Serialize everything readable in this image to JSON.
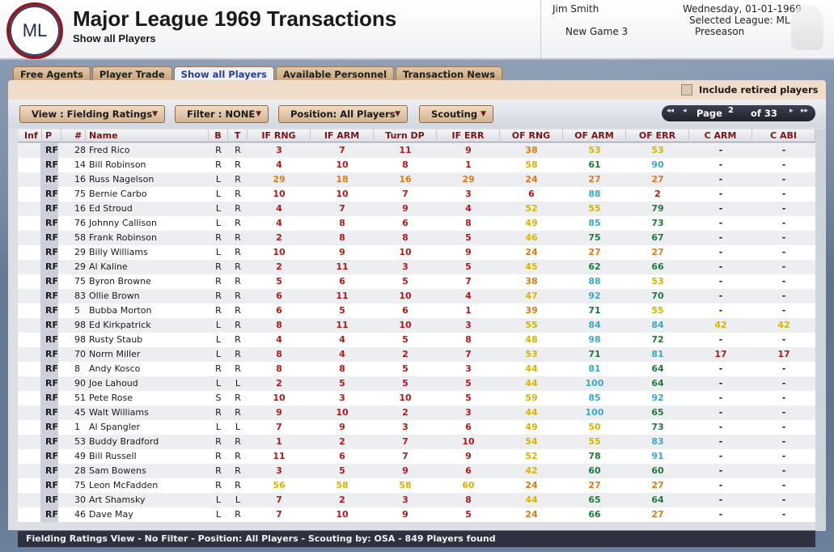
{
  "header": {
    "logo_text": "ML",
    "title": "Major League 1969 Transactions",
    "subtitle": "Show all Players",
    "user_name": "Jim Smith",
    "game_name": "New Game 3",
    "date": "Wednesday, 01-01-1969",
    "league": "Selected League: ML",
    "phase": "Preseason"
  },
  "tabs": [
    "Free Agents",
    "Player Trade",
    "Show all Players",
    "Available Personnel",
    "Transaction News"
  ],
  "active_tab": 2,
  "retired_label": "Include retired players",
  "toolbar": {
    "view": "View : Fielding Ratings",
    "filter": "Filter : NONE",
    "position": "Position: All Players",
    "scouting": "Scouting"
  },
  "pager": {
    "label": "Page",
    "current": "2",
    "of": "of 33"
  },
  "columns": [
    "Inf",
    "P",
    "#",
    "Name",
    "B",
    "T",
    "IF RNG",
    "IF ARM",
    "Turn DP",
    "IF ERR",
    "OF RNG",
    "OF ARM",
    "OF ERR",
    "C ARM",
    "C ABI"
  ],
  "colors": {
    "red": "#b01a1a",
    "orange": "#e07a12",
    "yellow": "#d6b400",
    "green": "#1f7a3a",
    "cyan": "#3aa8c8"
  },
  "players": [
    {
      "pos": "RF",
      "num": "28",
      "name": "Fred Rico",
      "b": "R",
      "t": "R",
      "r": [
        "3",
        "7",
        "11",
        "9",
        "38",
        "53",
        "53",
        "-",
        "-"
      ]
    },
    {
      "pos": "RF",
      "num": "14",
      "name": "Bill Robinson",
      "b": "R",
      "t": "R",
      "r": [
        "4",
        "10",
        "8",
        "1",
        "58",
        "61",
        "90",
        "-",
        "-"
      ]
    },
    {
      "pos": "RF",
      "num": "16",
      "name": "Russ Nagelson",
      "b": "L",
      "t": "R",
      "r": [
        "29",
        "18",
        "16",
        "29",
        "24",
        "27",
        "27",
        "-",
        "-"
      ]
    },
    {
      "pos": "RF",
      "num": "75",
      "name": "Bernie Carbo",
      "b": "L",
      "t": "R",
      "r": [
        "10",
        "10",
        "7",
        "3",
        "6",
        "88",
        "2",
        "-",
        "-"
      ]
    },
    {
      "pos": "RF",
      "num": "16",
      "name": "Ed Stroud",
      "b": "L",
      "t": "R",
      "r": [
        "4",
        "7",
        "9",
        "4",
        "52",
        "55",
        "79",
        "-",
        "-"
      ]
    },
    {
      "pos": "RF",
      "num": "76",
      "name": "Johnny Callison",
      "b": "L",
      "t": "R",
      "r": [
        "4",
        "8",
        "6",
        "8",
        "49",
        "85",
        "73",
        "-",
        "-"
      ]
    },
    {
      "pos": "RF",
      "num": "58",
      "name": "Frank Robinson",
      "b": "R",
      "t": "R",
      "r": [
        "2",
        "8",
        "8",
        "5",
        "46",
        "75",
        "67",
        "-",
        "-"
      ]
    },
    {
      "pos": "RF",
      "num": "29",
      "name": "Billy Williams",
      "b": "L",
      "t": "R",
      "r": [
        "10",
        "9",
        "10",
        "9",
        "24",
        "27",
        "27",
        "-",
        "-"
      ]
    },
    {
      "pos": "RF",
      "num": "29",
      "name": "Al Kaline",
      "b": "R",
      "t": "R",
      "r": [
        "2",
        "11",
        "3",
        "5",
        "45",
        "62",
        "66",
        "-",
        "-"
      ]
    },
    {
      "pos": "RF",
      "num": "75",
      "name": "Byron Browne",
      "b": "R",
      "t": "R",
      "r": [
        "5",
        "6",
        "5",
        "7",
        "38",
        "88",
        "53",
        "-",
        "-"
      ]
    },
    {
      "pos": "RF",
      "num": "83",
      "name": "Ollie Brown",
      "b": "R",
      "t": "R",
      "r": [
        "6",
        "11",
        "10",
        "4",
        "47",
        "92",
        "70",
        "-",
        "-"
      ]
    },
    {
      "pos": "RF",
      "num": "5",
      "name": "Bubba Morton",
      "b": "R",
      "t": "R",
      "r": [
        "6",
        "5",
        "6",
        "1",
        "39",
        "71",
        "55",
        "-",
        "-"
      ]
    },
    {
      "pos": "RF",
      "num": "98",
      "name": "Ed Kirkpatrick",
      "b": "L",
      "t": "R",
      "r": [
        "8",
        "11",
        "10",
        "3",
        "55",
        "84",
        "84",
        "42",
        "42"
      ]
    },
    {
      "pos": "RF",
      "num": "98",
      "name": "Rusty Staub",
      "b": "L",
      "t": "R",
      "r": [
        "4",
        "4",
        "5",
        "8",
        "48",
        "98",
        "72",
        "-",
        "-"
      ]
    },
    {
      "pos": "RF",
      "num": "70",
      "name": "Norm Miller",
      "b": "L",
      "t": "R",
      "r": [
        "8",
        "4",
        "2",
        "7",
        "53",
        "71",
        "81",
        "17",
        "17"
      ]
    },
    {
      "pos": "RF",
      "num": "8",
      "name": "Andy Kosco",
      "b": "R",
      "t": "R",
      "r": [
        "8",
        "8",
        "5",
        "3",
        "44",
        "81",
        "64",
        "-",
        "-"
      ]
    },
    {
      "pos": "RF",
      "num": "90",
      "name": "Joe Lahoud",
      "b": "L",
      "t": "L",
      "r": [
        "2",
        "5",
        "5",
        "5",
        "44",
        "100",
        "64",
        "-",
        "-"
      ]
    },
    {
      "pos": "RF",
      "num": "51",
      "name": "Pete Rose",
      "b": "S",
      "t": "R",
      "r": [
        "10",
        "3",
        "10",
        "5",
        "59",
        "85",
        "92",
        "-",
        "-"
      ]
    },
    {
      "pos": "RF",
      "num": "45",
      "name": "Walt Williams",
      "b": "R",
      "t": "R",
      "r": [
        "9",
        "10",
        "2",
        "3",
        "44",
        "100",
        "65",
        "-",
        "-"
      ]
    },
    {
      "pos": "RF",
      "num": "1",
      "name": "Al Spangler",
      "b": "L",
      "t": "L",
      "r": [
        "7",
        "9",
        "3",
        "6",
        "49",
        "50",
        "73",
        "-",
        "-"
      ]
    },
    {
      "pos": "RF",
      "num": "53",
      "name": "Buddy Bradford",
      "b": "R",
      "t": "R",
      "r": [
        "1",
        "2",
        "7",
        "10",
        "54",
        "55",
        "83",
        "-",
        "-"
      ]
    },
    {
      "pos": "RF",
      "num": "49",
      "name": "Bill Russell",
      "b": "R",
      "t": "R",
      "r": [
        "11",
        "6",
        "7",
        "9",
        "52",
        "78",
        "91",
        "-",
        "-"
      ]
    },
    {
      "pos": "RF",
      "num": "28",
      "name": "Sam Bowens",
      "b": "R",
      "t": "R",
      "r": [
        "3",
        "5",
        "9",
        "6",
        "42",
        "60",
        "60",
        "-",
        "-"
      ]
    },
    {
      "pos": "RF",
      "num": "75",
      "name": "Leon McFadden",
      "b": "R",
      "t": "R",
      "r": [
        "56",
        "58",
        "58",
        "60",
        "24",
        "27",
        "27",
        "-",
        "-"
      ]
    },
    {
      "pos": "RF",
      "num": "30",
      "name": "Art Shamsky",
      "b": "L",
      "t": "L",
      "r": [
        "7",
        "2",
        "3",
        "8",
        "44",
        "65",
        "64",
        "-",
        "-"
      ]
    },
    {
      "pos": "RF",
      "num": "46",
      "name": "Dave May",
      "b": "L",
      "t": "R",
      "r": [
        "7",
        "10",
        "9",
        "5",
        "24",
        "66",
        "27",
        "-",
        "-"
      ]
    }
  ],
  "status": "Fielding Ratings View - No Filter - Position: All Players - Scouting by: OSA - 849 Players found"
}
